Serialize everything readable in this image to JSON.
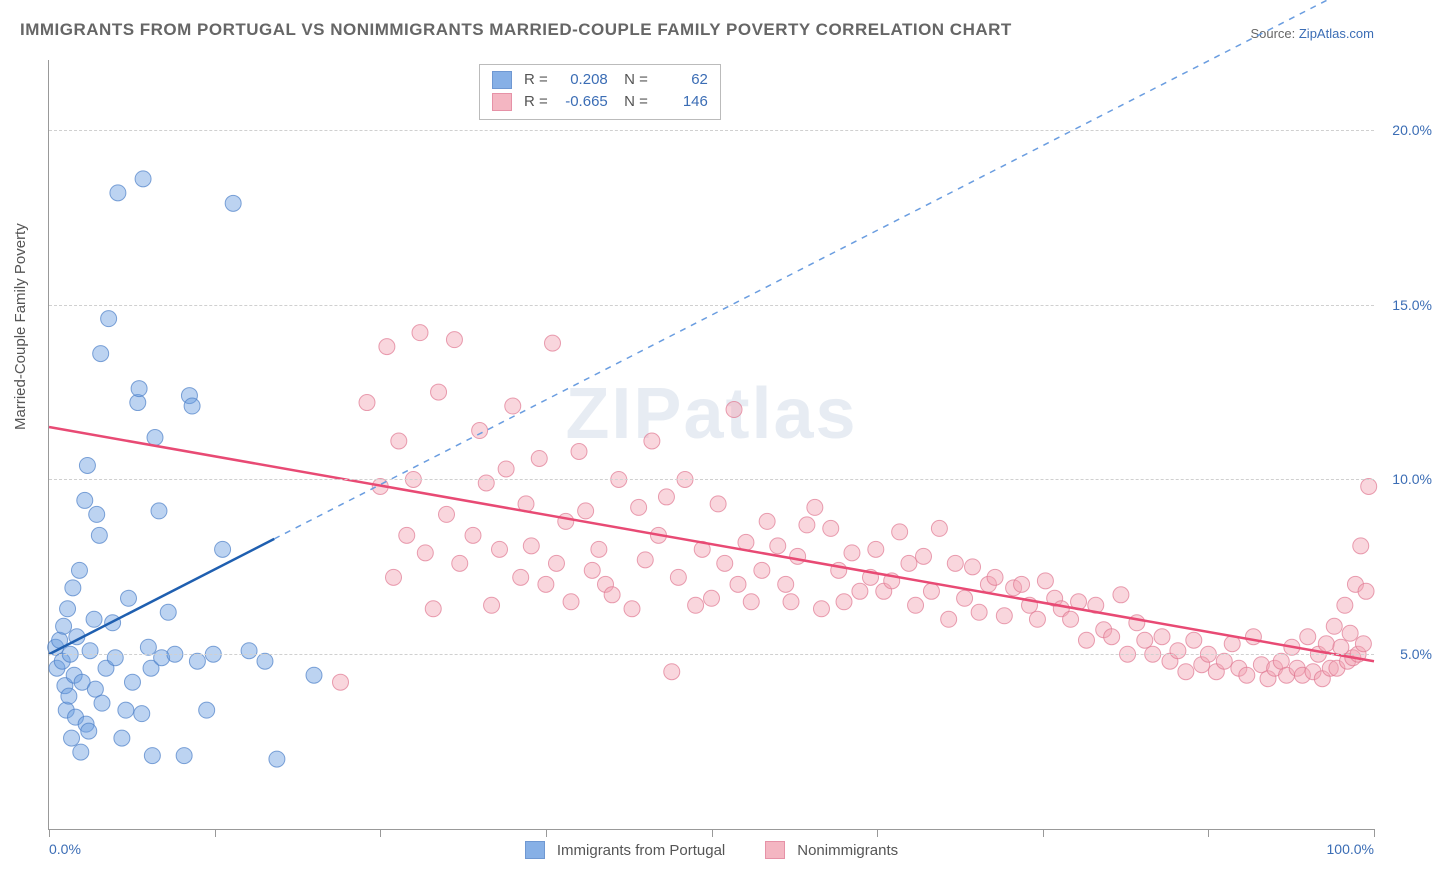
{
  "title": "IMMIGRANTS FROM PORTUGAL VS NONIMMIGRANTS MARRIED-COUPLE FAMILY POVERTY CORRELATION CHART",
  "source_prefix": "Source: ",
  "source_link": "ZipAtlas.com",
  "ylabel": "Married-Couple Family Poverty",
  "watermark": "ZIPatlas",
  "chart": {
    "type": "scatter",
    "xlim": [
      0,
      100
    ],
    "ylim": [
      0,
      22
    ],
    "xtick_labels": {
      "0": "0.0%",
      "100": "100.0%"
    },
    "xtick_positions": [
      0,
      12.5,
      25,
      37.5,
      50,
      62.5,
      75,
      87.5,
      100
    ],
    "ytick_labels": {
      "5": "5.0%",
      "10": "10.0%",
      "15": "15.0%",
      "20": "20.0%"
    },
    "grid_y": [
      5,
      10,
      15,
      20
    ],
    "grid_color": "#d0d0d0",
    "background_color": "#ffffff",
    "marker_radius": 8,
    "marker_opacity": 0.45,
    "series": [
      {
        "name": "Immigrants from Portugal",
        "color": "#6a9de0",
        "stroke": "#4c7fc7",
        "R": "0.208",
        "N": "62",
        "trend": {
          "x1": 0,
          "y1": 5.0,
          "x2": 17,
          "y2": 8.3,
          "color": "#1f5fb0",
          "width": 2.5
        },
        "trend_dash": {
          "x1": 17,
          "y1": 8.3,
          "x2": 100,
          "y2": 24.4,
          "color": "#6a9de0"
        },
        "points": [
          [
            0.5,
            5.2
          ],
          [
            0.6,
            4.6
          ],
          [
            0.8,
            5.4
          ],
          [
            1.0,
            4.8
          ],
          [
            1.1,
            5.8
          ],
          [
            1.2,
            4.1
          ],
          [
            1.3,
            3.4
          ],
          [
            1.4,
            6.3
          ],
          [
            1.5,
            3.8
          ],
          [
            1.6,
            5.0
          ],
          [
            1.7,
            2.6
          ],
          [
            1.8,
            6.9
          ],
          [
            1.9,
            4.4
          ],
          [
            2.0,
            3.2
          ],
          [
            2.1,
            5.5
          ],
          [
            2.3,
            7.4
          ],
          [
            2.4,
            2.2
          ],
          [
            2.5,
            4.2
          ],
          [
            2.7,
            9.4
          ],
          [
            2.8,
            3.0
          ],
          [
            2.9,
            10.4
          ],
          [
            3.0,
            2.8
          ],
          [
            3.1,
            5.1
          ],
          [
            3.4,
            6.0
          ],
          [
            3.5,
            4.0
          ],
          [
            3.6,
            9.0
          ],
          [
            3.8,
            8.4
          ],
          [
            3.9,
            13.6
          ],
          [
            4.0,
            3.6
          ],
          [
            4.3,
            4.6
          ],
          [
            4.5,
            14.6
          ],
          [
            4.8,
            5.9
          ],
          [
            5.0,
            4.9
          ],
          [
            5.2,
            18.2
          ],
          [
            5.5,
            2.6
          ],
          [
            5.8,
            3.4
          ],
          [
            6.0,
            6.6
          ],
          [
            6.3,
            4.2
          ],
          [
            6.7,
            12.2
          ],
          [
            6.8,
            12.6
          ],
          [
            7.0,
            3.3
          ],
          [
            7.1,
            18.6
          ],
          [
            7.5,
            5.2
          ],
          [
            7.7,
            4.6
          ],
          [
            7.8,
            2.1
          ],
          [
            8.0,
            11.2
          ],
          [
            8.3,
            9.1
          ],
          [
            8.5,
            4.9
          ],
          [
            9.0,
            6.2
          ],
          [
            9.5,
            5.0
          ],
          [
            10.2,
            2.1
          ],
          [
            10.6,
            12.4
          ],
          [
            10.8,
            12.1
          ],
          [
            11.2,
            4.8
          ],
          [
            11.9,
            3.4
          ],
          [
            12.4,
            5.0
          ],
          [
            13.1,
            8.0
          ],
          [
            13.9,
            17.9
          ],
          [
            15.1,
            5.1
          ],
          [
            16.3,
            4.8
          ],
          [
            17.2,
            2.0
          ],
          [
            20.0,
            4.4
          ]
        ]
      },
      {
        "name": "Nonimmigrants",
        "color": "#f2a4b4",
        "stroke": "#e07892",
        "R": "-0.665",
        "N": "146",
        "trend": {
          "x1": 0,
          "y1": 11.5,
          "x2": 100,
          "y2": 4.8,
          "color": "#e84a74",
          "width": 2.5
        },
        "points": [
          [
            22,
            4.2
          ],
          [
            24,
            12.2
          ],
          [
            25,
            9.8
          ],
          [
            25.5,
            13.8
          ],
          [
            26,
            7.2
          ],
          [
            26.4,
            11.1
          ],
          [
            27,
            8.4
          ],
          [
            27.5,
            10.0
          ],
          [
            28,
            14.2
          ],
          [
            28.4,
            7.9
          ],
          [
            29,
            6.3
          ],
          [
            29.4,
            12.5
          ],
          [
            30,
            9.0
          ],
          [
            30.6,
            14.0
          ],
          [
            31,
            7.6
          ],
          [
            32,
            8.4
          ],
          [
            32.5,
            11.4
          ],
          [
            33,
            9.9
          ],
          [
            33.4,
            6.4
          ],
          [
            34,
            8.0
          ],
          [
            34.5,
            10.3
          ],
          [
            35,
            12.1
          ],
          [
            35.6,
            7.2
          ],
          [
            36,
            9.3
          ],
          [
            36.4,
            8.1
          ],
          [
            37,
            10.6
          ],
          [
            37.5,
            7.0
          ],
          [
            38,
            13.9
          ],
          [
            38.3,
            7.6
          ],
          [
            39,
            8.8
          ],
          [
            39.4,
            6.5
          ],
          [
            40,
            10.8
          ],
          [
            40.5,
            9.1
          ],
          [
            41,
            7.4
          ],
          [
            41.5,
            8.0
          ],
          [
            42,
            7.0
          ],
          [
            42.5,
            6.7
          ],
          [
            43,
            10.0
          ],
          [
            44,
            6.3
          ],
          [
            44.5,
            9.2
          ],
          [
            45,
            7.7
          ],
          [
            45.5,
            11.1
          ],
          [
            46,
            8.4
          ],
          [
            46.6,
            9.5
          ],
          [
            47,
            4.5
          ],
          [
            47.5,
            7.2
          ],
          [
            48,
            10.0
          ],
          [
            48.8,
            6.4
          ],
          [
            49.3,
            8.0
          ],
          [
            50,
            6.6
          ],
          [
            50.5,
            9.3
          ],
          [
            51,
            7.6
          ],
          [
            51.7,
            12.0
          ],
          [
            52,
            7.0
          ],
          [
            52.6,
            8.2
          ],
          [
            53,
            6.5
          ],
          [
            53.8,
            7.4
          ],
          [
            54.2,
            8.8
          ],
          [
            55,
            8.1
          ],
          [
            55.6,
            7.0
          ],
          [
            56,
            6.5
          ],
          [
            56.5,
            7.8
          ],
          [
            57.2,
            8.7
          ],
          [
            57.8,
            9.2
          ],
          [
            58.3,
            6.3
          ],
          [
            59,
            8.6
          ],
          [
            59.6,
            7.4
          ],
          [
            60,
            6.5
          ],
          [
            60.6,
            7.9
          ],
          [
            61.2,
            6.8
          ],
          [
            62,
            7.2
          ],
          [
            62.4,
            8.0
          ],
          [
            63,
            6.8
          ],
          [
            63.6,
            7.1
          ],
          [
            64.2,
            8.5
          ],
          [
            64.9,
            7.6
          ],
          [
            65.4,
            6.4
          ],
          [
            66,
            7.8
          ],
          [
            66.6,
            6.8
          ],
          [
            67.2,
            8.6
          ],
          [
            67.9,
            6.0
          ],
          [
            68.4,
            7.6
          ],
          [
            69.1,
            6.6
          ],
          [
            69.7,
            7.5
          ],
          [
            70.2,
            6.2
          ],
          [
            70.9,
            7.0
          ],
          [
            71.4,
            7.2
          ],
          [
            72.1,
            6.1
          ],
          [
            72.8,
            6.9
          ],
          [
            73.4,
            7.0
          ],
          [
            74,
            6.4
          ],
          [
            74.6,
            6.0
          ],
          [
            75.2,
            7.1
          ],
          [
            75.9,
            6.6
          ],
          [
            76.4,
            6.3
          ],
          [
            77.1,
            6.0
          ],
          [
            77.7,
            6.5
          ],
          [
            78.3,
            5.4
          ],
          [
            79,
            6.4
          ],
          [
            79.6,
            5.7
          ],
          [
            80.2,
            5.5
          ],
          [
            80.9,
            6.7
          ],
          [
            81.4,
            5.0
          ],
          [
            82.1,
            5.9
          ],
          [
            82.7,
            5.4
          ],
          [
            83.3,
            5.0
          ],
          [
            84,
            5.5
          ],
          [
            84.6,
            4.8
          ],
          [
            85.2,
            5.1
          ],
          [
            85.8,
            4.5
          ],
          [
            86.4,
            5.4
          ],
          [
            87.0,
            4.7
          ],
          [
            87.5,
            5.0
          ],
          [
            88.1,
            4.5
          ],
          [
            88.7,
            4.8
          ],
          [
            89.3,
            5.3
          ],
          [
            89.8,
            4.6
          ],
          [
            90.4,
            4.4
          ],
          [
            90.9,
            5.5
          ],
          [
            91.5,
            4.7
          ],
          [
            92.0,
            4.3
          ],
          [
            92.5,
            4.6
          ],
          [
            93.0,
            4.8
          ],
          [
            93.4,
            4.4
          ],
          [
            93.8,
            5.2
          ],
          [
            94.2,
            4.6
          ],
          [
            94.6,
            4.4
          ],
          [
            95.0,
            5.5
          ],
          [
            95.4,
            4.5
          ],
          [
            95.8,
            5.0
          ],
          [
            96.1,
            4.3
          ],
          [
            96.4,
            5.3
          ],
          [
            96.7,
            4.6
          ],
          [
            97.0,
            5.8
          ],
          [
            97.2,
            4.6
          ],
          [
            97.5,
            5.2
          ],
          [
            97.8,
            6.4
          ],
          [
            98.0,
            4.8
          ],
          [
            98.2,
            5.6
          ],
          [
            98.4,
            4.9
          ],
          [
            98.6,
            7.0
          ],
          [
            98.8,
            5.0
          ],
          [
            99.0,
            8.1
          ],
          [
            99.2,
            5.3
          ],
          [
            99.4,
            6.8
          ],
          [
            99.6,
            9.8
          ]
        ]
      }
    ]
  },
  "bottom_legend": [
    "Immigrants from Portugal",
    "Nonimmigrants"
  ]
}
